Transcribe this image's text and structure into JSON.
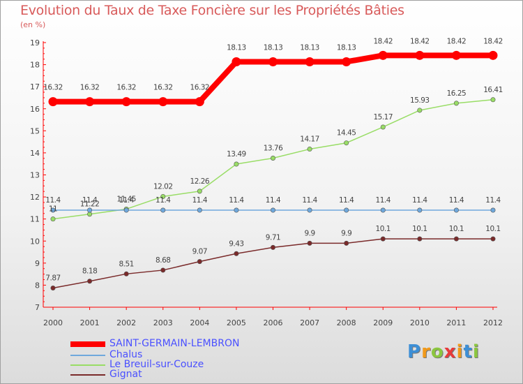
{
  "chart_data": {
    "type": "line",
    "title": "Evolution du Taux de Taxe Foncière sur les Propriétés Bâties",
    "subtitle": "(en %)",
    "x": [
      "2000",
      "2001",
      "2002",
      "2003",
      "2004",
      "2005",
      "2006",
      "2007",
      "2008",
      "2009",
      "2010",
      "2011",
      "2012"
    ],
    "ylim": [
      7,
      19
    ],
    "yticks": [
      "7",
      "8",
      "9",
      "10",
      "11",
      "12",
      "13",
      "14",
      "15",
      "16",
      "17",
      "18",
      "19"
    ],
    "grid": false,
    "legend_position": "bottom-left",
    "series": [
      {
        "name": "SAINT-GERMAIN-LEMBRON",
        "color": "#ff0000",
        "values": [
          16.32,
          16.32,
          16.32,
          16.32,
          16.32,
          18.13,
          18.13,
          18.13,
          18.13,
          18.42,
          18.42,
          18.42,
          18.42
        ],
        "labels": [
          "16.32",
          "16.32",
          "16.32",
          "16.32",
          "16.32",
          "18.13",
          "18.13",
          "18.13",
          "18.13",
          "18.42",
          "18.42",
          "18.42",
          "18.42"
        ]
      },
      {
        "name": "Chalus",
        "color": "#6fa8dc",
        "values": [
          11.4,
          11.4,
          11.4,
          11.4,
          11.4,
          11.4,
          11.4,
          11.4,
          11.4,
          11.4,
          11.4,
          11.4,
          11.4
        ],
        "labels": [
          "11.4",
          "11.4",
          "11.4",
          "11.4",
          "11.4",
          "11.4",
          "11.4",
          "11.4",
          "11.4",
          "11.4",
          "11.4",
          "11.4",
          "11.4"
        ]
      },
      {
        "name": "Le Breuil-sur-Couze",
        "color": "#99dd66",
        "values": [
          11,
          11.22,
          11.45,
          12.02,
          12.26,
          13.49,
          13.76,
          14.17,
          14.45,
          15.17,
          15.93,
          16.25,
          16.41
        ],
        "labels": [
          "11",
          "11.22",
          "11.45",
          "12.02",
          "12.26",
          "13.49",
          "13.76",
          "14.17",
          "14.45",
          "15.17",
          "15.93",
          "16.25",
          "16.41"
        ]
      },
      {
        "name": "Gignat",
        "color": "#7a2a2a",
        "values": [
          7.87,
          8.18,
          8.51,
          8.68,
          9.07,
          9.43,
          9.71,
          9.9,
          9.9,
          10.1,
          10.1,
          10.1,
          10.1
        ],
        "labels": [
          "7.87",
          "8.18",
          "8.51",
          "8.68",
          "9.07",
          "9.43",
          "9.71",
          "9.9",
          "9.9",
          "10.1",
          "10.1",
          "10.1",
          "10.1"
        ]
      }
    ]
  },
  "logo": {
    "letters": [
      "P",
      "r",
      "o",
      "x",
      "i",
      "t",
      "i"
    ],
    "colors": [
      "#3d8fd6",
      "#f29a1a",
      "#8cc63f",
      "#e83a3a",
      "#f29a1a",
      "#3d8fd6",
      "#8cc63f"
    ]
  }
}
